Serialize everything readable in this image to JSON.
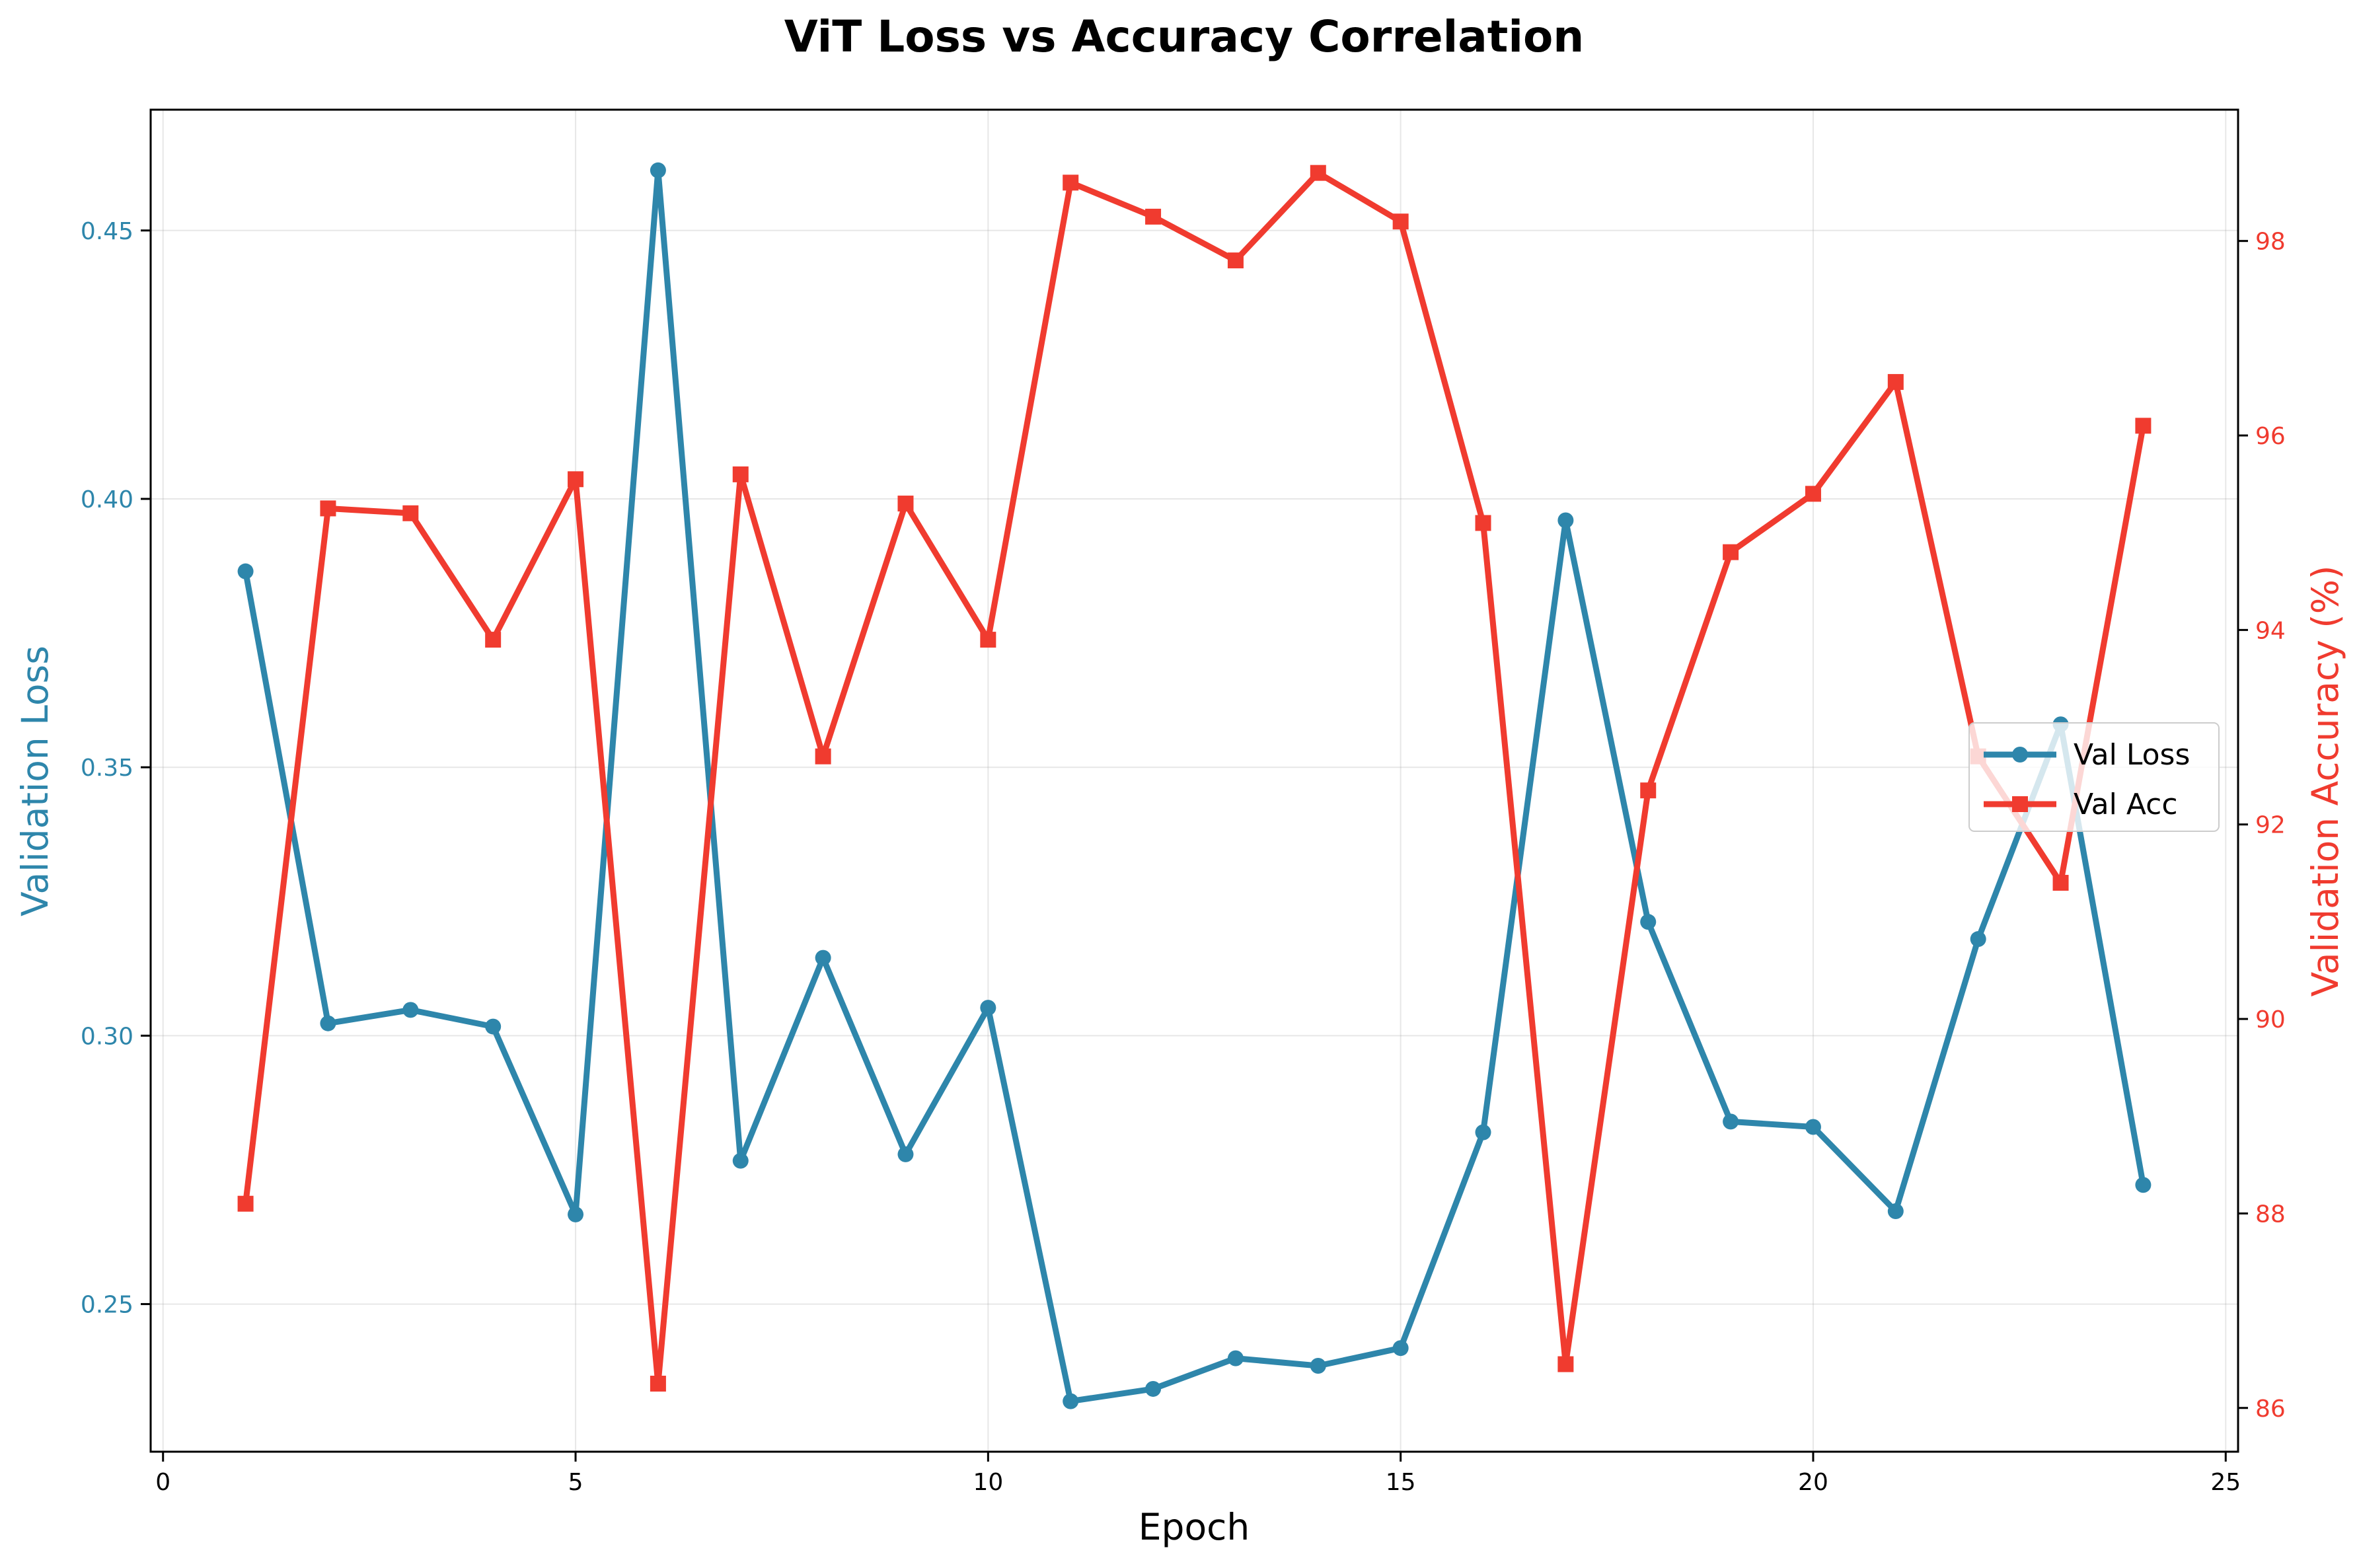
{
  "chart_data": {
    "type": "line",
    "title": "ViT Loss vs Accuracy Correlation",
    "xlabel": "Epoch",
    "ylabel_left": "Validation Loss",
    "ylabel_right": "Validation Accuracy (%)",
    "xlim": [
      -0.15,
      25.15
    ],
    "ylim_left": [
      0.2225,
      0.4725
    ],
    "ylim_right": [
      85.55,
      99.35
    ],
    "x_ticks": [
      0,
      5,
      10,
      15,
      20,
      25
    ],
    "y_left_ticks": [
      0.25,
      0.3,
      0.35,
      0.4,
      0.45
    ],
    "y_right_ticks": [
      86,
      88,
      90,
      92,
      94,
      96,
      98
    ],
    "grid": true,
    "legend_position": "center-right",
    "x": [
      1,
      2,
      3,
      4,
      5,
      6,
      7,
      8,
      9,
      10,
      11,
      12,
      13,
      14,
      15,
      16,
      17,
      18,
      19,
      20,
      21,
      22,
      23,
      24
    ],
    "series": [
      {
        "name": "Val Loss",
        "axis": "left",
        "color": "#2e86ab",
        "marker": "circle",
        "values": [
          0.3865,
          0.3023,
          0.3048,
          0.3017,
          0.2667,
          0.4612,
          0.2767,
          0.3145,
          0.2779,
          0.3052,
          0.2319,
          0.2342,
          0.2399,
          0.2385,
          0.2418,
          0.282,
          0.396,
          0.3212,
          0.284,
          0.283,
          0.2673,
          0.318,
          0.358,
          0.2722
        ]
      },
      {
        "name": "Val Acc",
        "axis": "right",
        "color": "#f03b2f",
        "marker": "square",
        "values": [
          88.1,
          95.25,
          95.2,
          93.9,
          95.55,
          86.25,
          95.6,
          92.7,
          95.3,
          93.9,
          98.6,
          98.25,
          97.8,
          98.7,
          98.2,
          95.1,
          86.45,
          92.35,
          94.8,
          95.4,
          96.55,
          92.7,
          91.4,
          96.1
        ]
      }
    ]
  }
}
